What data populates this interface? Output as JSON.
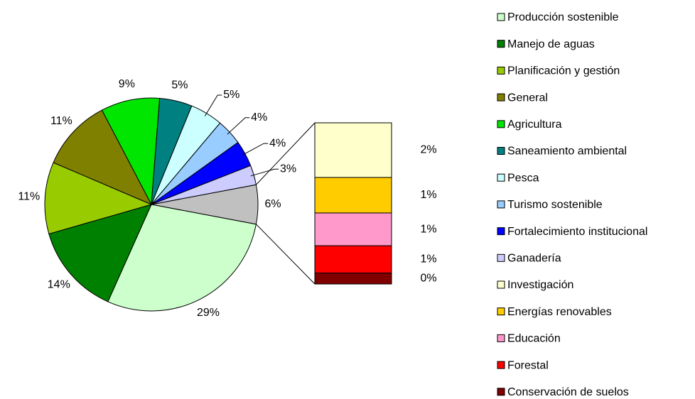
{
  "chart_data": {
    "type": "pie-of-bar",
    "categories": [
      "Producción sostenible",
      "Manejo de aguas",
      "Planificación y gestión",
      "General",
      "Agricultura",
      "Saneamiento ambiental",
      "Pesca",
      "Turismo sostenible",
      "Fortalecimiento institucional",
      "Ganadería"
    ],
    "values": [
      29,
      14,
      11,
      11,
      9,
      5,
      5,
      4,
      4,
      3
    ],
    "value_labels": [
      "29%",
      "14%",
      "11%",
      "11%",
      "9%",
      "5%",
      "5%",
      "4%",
      "4%",
      "3%"
    ],
    "colors": [
      "#ccffcc",
      "#008000",
      "#99cc00",
      "#808000",
      "#00e600",
      "#008080",
      "#ccffff",
      "#99ccff",
      "#0000ff",
      "#ccccff"
    ],
    "other": {
      "value": 6,
      "value_label": "6%",
      "color": "#c0c0c0"
    },
    "bar": {
      "categories": [
        "Investigación",
        "Energías renovables",
        "Educación",
        "Forestal",
        "Conservación de suelos"
      ],
      "values": [
        2,
        1.3,
        1.2,
        1,
        0.4
      ],
      "value_labels": [
        "2%",
        "1%",
        "1%",
        "1%",
        "0%"
      ],
      "colors": [
        "#ffffcc",
        "#ffcc00",
        "#ff99cc",
        "#ff0000",
        "#800000"
      ]
    },
    "legend": "right"
  }
}
